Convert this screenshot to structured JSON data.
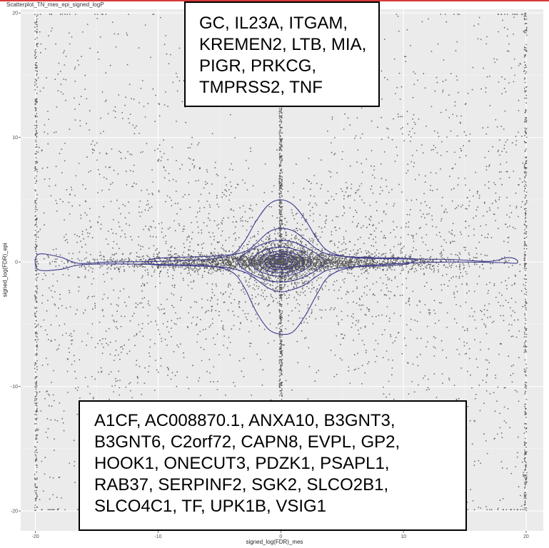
{
  "page": {
    "title": "Scatterplot_TN_mes_epi_signed_logP",
    "topline_color": "#d63a3a"
  },
  "chart_data": {
    "type": "scatter",
    "title": "Scatterplot_TN_mes_epi_signed_logP",
    "xlabel": "signed_log(FDR)_mes",
    "ylabel": "signed_log(FDR)_epi",
    "xlim": [
      -21.2,
      21.4
    ],
    "ylim": [
      -21.6,
      20.3
    ],
    "xticks": [
      -20,
      -10,
      0,
      10,
      20
    ],
    "yticks": [
      -20,
      -10,
      0,
      10,
      20
    ],
    "grid": true,
    "point_color": "#555555",
    "contour_color": "#3d3b8e",
    "panel_background": "#ebebeb",
    "contours": [
      {
        "level": 1,
        "points": [
          [
            -19.8,
            0.6
          ],
          [
            -18,
            0.4
          ],
          [
            -16.5,
            -0.1
          ],
          [
            -14,
            0.0
          ],
          [
            -10,
            0.05
          ],
          [
            -6,
            0.2
          ],
          [
            -4,
            0.6
          ],
          [
            -3,
            1.6
          ],
          [
            -2,
            3.3
          ],
          [
            -1,
            4.6
          ],
          [
            0,
            5.0
          ],
          [
            1,
            4.6
          ],
          [
            2,
            3.4
          ],
          [
            3,
            1.8
          ],
          [
            4,
            0.8
          ],
          [
            6,
            0.35
          ],
          [
            10,
            0.25
          ],
          [
            14,
            0.2
          ],
          [
            17,
            0.05
          ],
          [
            18.5,
            0.35
          ],
          [
            19.2,
            0.2
          ],
          [
            19.2,
            -0.1
          ],
          [
            18,
            -0.05
          ],
          [
            14,
            0.0
          ],
          [
            10,
            -0.1
          ],
          [
            6,
            -0.4
          ],
          [
            4,
            -1.1
          ],
          [
            3,
            -2.5
          ],
          [
            2,
            -4.3
          ],
          [
            1,
            -5.6
          ],
          [
            0,
            -5.8
          ],
          [
            -1,
            -5.4
          ],
          [
            -2,
            -4.0
          ],
          [
            -3,
            -2.0
          ],
          [
            -4,
            -0.8
          ],
          [
            -6,
            -0.3
          ],
          [
            -10,
            -0.2
          ],
          [
            -14,
            -0.15
          ],
          [
            -16.5,
            -0.25
          ],
          [
            -18,
            -0.6
          ],
          [
            -19.8,
            -0.6
          ]
        ]
      },
      {
        "level": 2,
        "points": [
          [
            -10,
            0.3
          ],
          [
            -5,
            0.5
          ],
          [
            -3,
            0.8
          ],
          [
            -2,
            1.5
          ],
          [
            -1,
            2.4
          ],
          [
            0,
            2.7
          ],
          [
            1,
            2.5
          ],
          [
            2,
            1.8
          ],
          [
            3,
            1.0
          ],
          [
            4,
            0.6
          ],
          [
            6,
            0.4
          ],
          [
            10,
            0.3
          ],
          [
            11,
            0.2
          ],
          [
            10,
            -0.2
          ],
          [
            6,
            -0.4
          ],
          [
            4,
            -0.6
          ],
          [
            3,
            -1.1
          ],
          [
            2,
            -1.8
          ],
          [
            1,
            -2.2
          ],
          [
            0,
            -2.4
          ],
          [
            -1,
            -2.1
          ],
          [
            -2,
            -1.4
          ],
          [
            -3,
            -0.8
          ],
          [
            -5,
            -0.4
          ],
          [
            -10,
            -0.25
          ],
          [
            -10.8,
            0.0
          ]
        ]
      },
      {
        "level": 3,
        "points": [
          [
            -3.5,
            0.0
          ],
          [
            -3,
            0.6
          ],
          [
            -2,
            1.2
          ],
          [
            -1,
            1.6
          ],
          [
            0,
            1.75
          ],
          [
            1,
            1.6
          ],
          [
            2,
            1.2
          ],
          [
            3,
            0.6
          ],
          [
            3.6,
            0.0
          ],
          [
            3,
            -0.6
          ],
          [
            2,
            -1.15
          ],
          [
            1,
            -1.5
          ],
          [
            0,
            -1.6
          ],
          [
            -1,
            -1.5
          ],
          [
            -2,
            -1.15
          ],
          [
            -3,
            -0.6
          ]
        ]
      },
      {
        "level": 4,
        "points": [
          [
            -2.4,
            0.0
          ],
          [
            -2,
            0.6
          ],
          [
            -1,
            1.05
          ],
          [
            0,
            1.2
          ],
          [
            1,
            1.05
          ],
          [
            2,
            0.65
          ],
          [
            2.5,
            0.0
          ],
          [
            2,
            -0.6
          ],
          [
            1,
            -1.0
          ],
          [
            0,
            -1.15
          ],
          [
            -1,
            -1.0
          ],
          [
            -2,
            -0.6
          ]
        ]
      },
      {
        "level": 5,
        "points": [
          [
            -1.8,
            0.0
          ],
          [
            -1.4,
            0.55
          ],
          [
            -0.7,
            0.8
          ],
          [
            0,
            0.88
          ],
          [
            0.7,
            0.8
          ],
          [
            1.4,
            0.55
          ],
          [
            1.9,
            0.0
          ],
          [
            1.4,
            -0.55
          ],
          [
            0.7,
            -0.8
          ],
          [
            0,
            -0.85
          ],
          [
            -0.7,
            -0.8
          ],
          [
            -1.4,
            -0.55
          ]
        ]
      },
      {
        "level": 6,
        "points": [
          [
            -1.3,
            0.0
          ],
          [
            -1,
            0.42
          ],
          [
            -0.5,
            0.6
          ],
          [
            0,
            0.65
          ],
          [
            0.5,
            0.6
          ],
          [
            1,
            0.42
          ],
          [
            1.35,
            0.0
          ],
          [
            1,
            -0.42
          ],
          [
            0.5,
            -0.6
          ],
          [
            0,
            -0.62
          ],
          [
            -0.5,
            -0.6
          ],
          [
            -1,
            -0.42
          ]
        ]
      },
      {
        "level": 7,
        "points": [
          [
            -0.9,
            0.0
          ],
          [
            -0.7,
            0.3
          ],
          [
            -0.35,
            0.42
          ],
          [
            0,
            0.46
          ],
          [
            0.35,
            0.42
          ],
          [
            0.7,
            0.3
          ],
          [
            0.95,
            0.0
          ],
          [
            0.7,
            -0.3
          ],
          [
            0.35,
            -0.42
          ],
          [
            0,
            -0.44
          ],
          [
            -0.35,
            -0.42
          ],
          [
            -0.7,
            -0.3
          ]
        ]
      },
      {
        "level": 8,
        "points": [
          [
            -0.5,
            0.0
          ],
          [
            -0.35,
            0.18
          ],
          [
            0,
            0.25
          ],
          [
            0.35,
            0.18
          ],
          [
            0.52,
            0.0
          ],
          [
            0.35,
            -0.18
          ],
          [
            0,
            -0.24
          ],
          [
            -0.35,
            -0.18
          ]
        ]
      }
    ],
    "annotations": [
      {
        "position": "top",
        "genes_lines": [
          "GC, IL23A, ITGAM,",
          "KREMEN2, LTB, MIA,",
          "PIGR, PRKCG,",
          "TMPRSS2, TNF"
        ]
      },
      {
        "position": "bottom",
        "genes_lines": [
          "A1CF, AC008870.1, ANXA10, B3GNT3,",
          "B3GNT6, C2orf72, CAPN8, EVPL, GP2,",
          "HOOK1, ONECUT3, PDZK1, PSAPL1,",
          "RAB37, SERPINF2, SGK2, SLCO2B1,",
          "SLCO4C1, TF, UPK1B, VSIG1"
        ]
      }
    ]
  }
}
